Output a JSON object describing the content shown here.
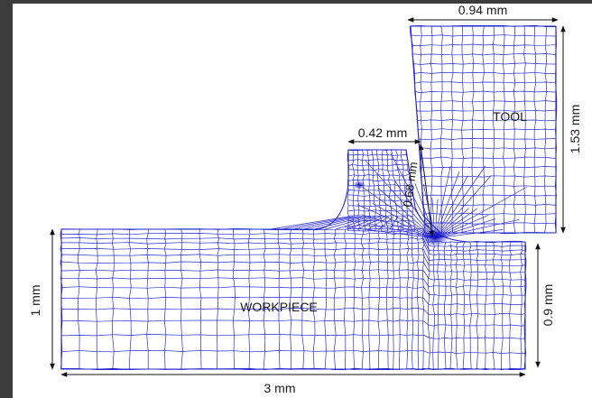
{
  "frame": {
    "border_color": "#3c3c3c",
    "mesh_color": "#2b2bd8"
  },
  "labels": {
    "tool": "TOOL",
    "workpiece": "WORKPIECE"
  },
  "dimensions": {
    "tool_width": "0.94 mm",
    "tool_height": "1.53 mm",
    "chip_width": "0.42 mm",
    "chip_diag": "0.68 mm",
    "workpiece_height": "1 mm",
    "workpiece_right_height": "0.9 mm",
    "workpiece_length": "3 mm"
  }
}
